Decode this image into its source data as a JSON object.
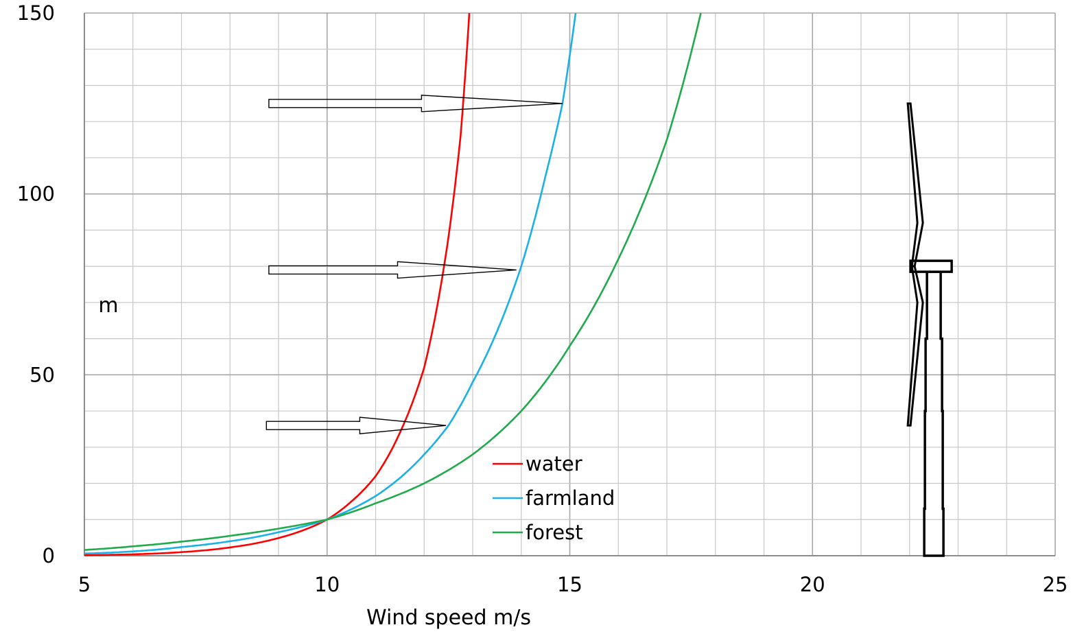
{
  "chart_data": {
    "type": "line",
    "title": "",
    "xlabel": "Wind speed m/s",
    "ylabel": "m",
    "xlim": [
      5,
      25
    ],
    "ylim": [
      0,
      150
    ],
    "x_ticks": [
      "5",
      "10",
      "15",
      "20",
      "25"
    ],
    "y_ticks": [
      "0",
      "50",
      "100",
      "150"
    ],
    "x_grid_step": 1,
    "y_grid_step": 10,
    "grid": true,
    "legend_position": "bottom-center",
    "series": [
      {
        "name": "water",
        "color": "#ff0000",
        "x": [
          5,
          6,
          7,
          8,
          9,
          10,
          10.5,
          11,
          11.5,
          12,
          12.5,
          12.75,
          12.93
        ],
        "y": [
          0.15,
          0.4,
          1.0,
          2.3,
          4.9,
          10,
          15,
          22,
          34,
          52,
          88,
          116,
          150
        ]
      },
      {
        "name": "farmland",
        "color": "#1ab0e8",
        "x": [
          5,
          6,
          7,
          8,
          9,
          10,
          11,
          12,
          12.5,
          13,
          13.5,
          14,
          14.5,
          14.85,
          15.12
        ],
        "y": [
          0.6,
          1.2,
          2.4,
          4.0,
          6.5,
          10,
          16.5,
          28,
          36,
          48,
          62,
          80,
          105,
          125,
          150
        ]
      },
      {
        "name": "forest",
        "color": "#1faa4c",
        "x": [
          5,
          6,
          7,
          8,
          9,
          10,
          11,
          12,
          13,
          14,
          15,
          16,
          17,
          17.7
        ],
        "y": [
          1.6,
          2.6,
          3.9,
          5.5,
          7.5,
          10,
          14.5,
          20,
          28,
          40,
          58,
          82,
          115,
          150
        ]
      }
    ],
    "annotations": [
      {
        "kind": "arrow",
        "from": [
          8.8,
          125
        ],
        "to": [
          14.85,
          125
        ]
      },
      {
        "kind": "arrow",
        "from": [
          8.8,
          79
        ],
        "to": [
          13.9,
          79
        ]
      },
      {
        "kind": "arrow",
        "from": [
          8.75,
          36
        ],
        "to": [
          12.45,
          36
        ]
      },
      {
        "kind": "wind-turbine",
        "x": 22.5,
        "hub_height": 80,
        "tip_top": 125,
        "tip_bottom": 36
      }
    ]
  }
}
